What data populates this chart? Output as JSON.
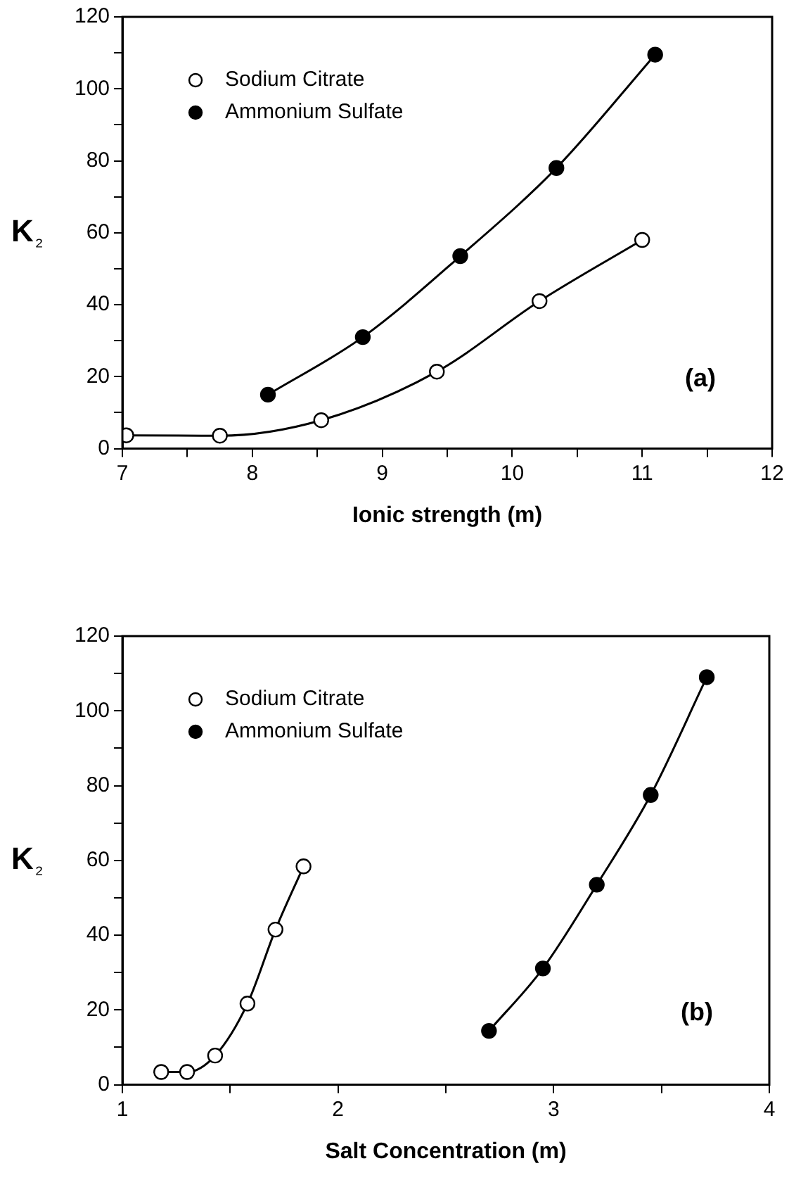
{
  "chart_data": [
    {
      "type": "line",
      "xlabel": "Ionic strength (m)",
      "ylabel": "K₂",
      "annotations": [
        "(a)"
      ],
      "legend": "top left",
      "grid": false,
      "line_style": "solid",
      "xlim": [
        7,
        12
      ],
      "xticks": [
        7,
        {
          "value": 7.5,
          "label": null
        },
        8,
        {
          "value": 8.5,
          "label": null
        },
        9,
        {
          "value": 9.5,
          "label": null
        },
        10,
        {
          "value": 10.5,
          "label": null
        },
        11,
        {
          "value": 11.5,
          "label": null
        },
        12
      ],
      "ylim": [
        0,
        120
      ],
      "yticks": [
        0,
        {
          "value": 10,
          "label": null
        },
        20,
        {
          "value": 30,
          "label": null
        },
        40,
        {
          "value": 50,
          "label": null
        },
        60,
        {
          "value": 70,
          "label": null
        },
        80,
        {
          "value": 90,
          "label": null
        },
        100,
        {
          "value": 110,
          "label": null
        },
        120
      ],
      "series": [
        {
          "name": "Sodium Citrate",
          "color": "#000000",
          "marker": "circle-open",
          "x": [
            7.03,
            7.75,
            8.53,
            9.42,
            10.21,
            11.0
          ],
          "values": [
            3.7,
            3.6,
            7.9,
            21.4,
            41,
            58
          ]
        },
        {
          "name": "Ammonium Sulfate",
          "color": "#000000",
          "marker": "circle",
          "x": [
            8.12,
            8.85,
            9.6,
            10.34,
            11.1
          ],
          "values": [
            15,
            31,
            53.5,
            78,
            109.5
          ]
        }
      ]
    },
    {
      "type": "line",
      "xlabel": "Salt Concentration (m)",
      "ylabel": "K₂",
      "annotations": [
        "(b)"
      ],
      "legend": "top left",
      "grid": false,
      "line_style": "solid",
      "xlim": [
        1,
        4
      ],
      "xticks": [
        1,
        {
          "value": 1.5,
          "label": null
        },
        2,
        {
          "value": 2.5,
          "label": null
        },
        3,
        {
          "value": 3.5,
          "label": null
        },
        4
      ],
      "ylim": [
        0,
        120
      ],
      "yticks": [
        0,
        {
          "value": 10,
          "label": null
        },
        20,
        {
          "value": 30,
          "label": null
        },
        40,
        {
          "value": 50,
          "label": null
        },
        60,
        {
          "value": 70,
          "label": null
        },
        80,
        {
          "value": 90,
          "label": null
        },
        100,
        {
          "value": 110,
          "label": null
        },
        120
      ],
      "series": [
        {
          "name": "Sodium Citrate",
          "color": "#000000",
          "marker": "circle-open",
          "x": [
            1.18,
            1.3,
            1.43,
            1.58,
            1.71,
            1.84
          ],
          "values": [
            3.4,
            3.4,
            7.8,
            21.7,
            41.5,
            58.4
          ]
        },
        {
          "name": "Ammonium Sulfate",
          "color": "#000000",
          "marker": "circle",
          "x": [
            2.7,
            2.95,
            3.2,
            3.45,
            3.71
          ],
          "values": [
            14.4,
            31.1,
            53.5,
            77.5,
            109
          ]
        }
      ]
    }
  ]
}
